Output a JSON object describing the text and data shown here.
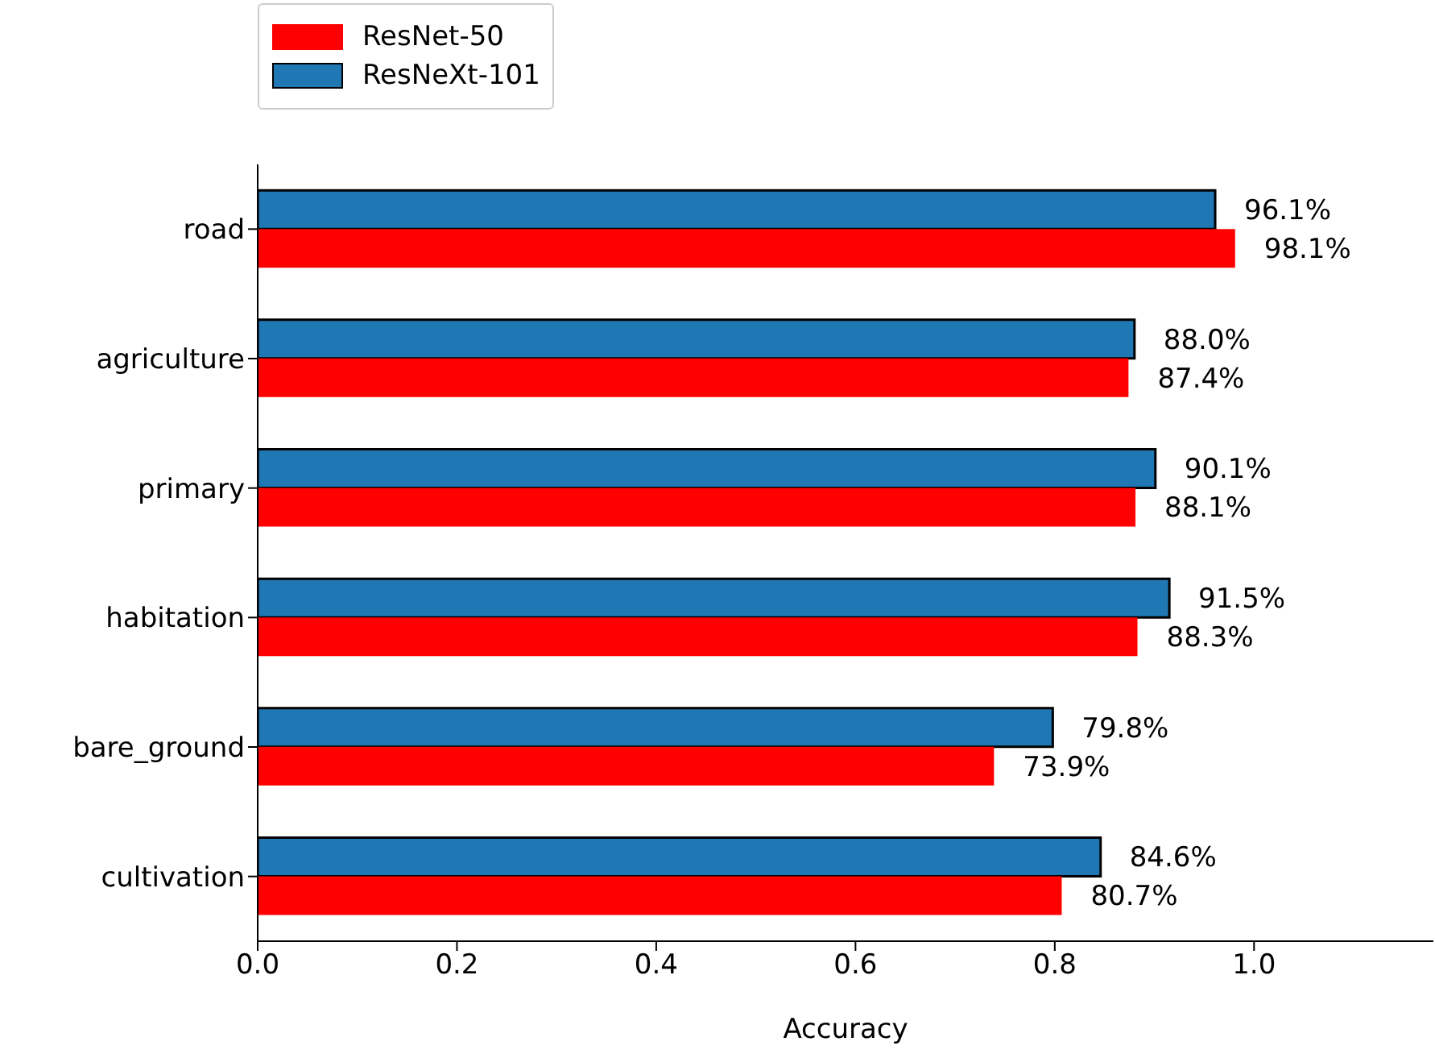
{
  "chart_data": {
    "type": "bar",
    "orientation": "horizontal",
    "xlabel": "Accuracy",
    "categories": [
      "road",
      "agriculture",
      "primary",
      "habitation",
      "bare_ground",
      "cultivation"
    ],
    "series": [
      {
        "name": "ResNet-50",
        "color": "#ff0000",
        "values": [
          0.981,
          0.874,
          0.881,
          0.883,
          0.739,
          0.807
        ],
        "value_labels": [
          "98.1%",
          "87.4%",
          "88.1%",
          "88.3%",
          "73.9%",
          "80.7%"
        ]
      },
      {
        "name": "ResNeXt-101",
        "color": "#1f77b4",
        "values": [
          0.961,
          0.88,
          0.901,
          0.915,
          0.798,
          0.846
        ],
        "value_labels": [
          "96.1%",
          "88.0%",
          "90.1%",
          "91.5%",
          "79.8%",
          "84.6%"
        ]
      }
    ],
    "xlim": [
      0,
      1.18
    ],
    "xticks": [
      {
        "value": 0,
        "label": "0.0"
      },
      {
        "value": 0.2,
        "label": "0.2"
      },
      {
        "value": 0.4,
        "label": "0.4"
      },
      {
        "value": 0.6,
        "label": "0.6"
      },
      {
        "value": 0.8,
        "label": "0.8"
      },
      {
        "value": 1,
        "label": "1.0"
      }
    ],
    "grid": false,
    "legend": "top left"
  }
}
